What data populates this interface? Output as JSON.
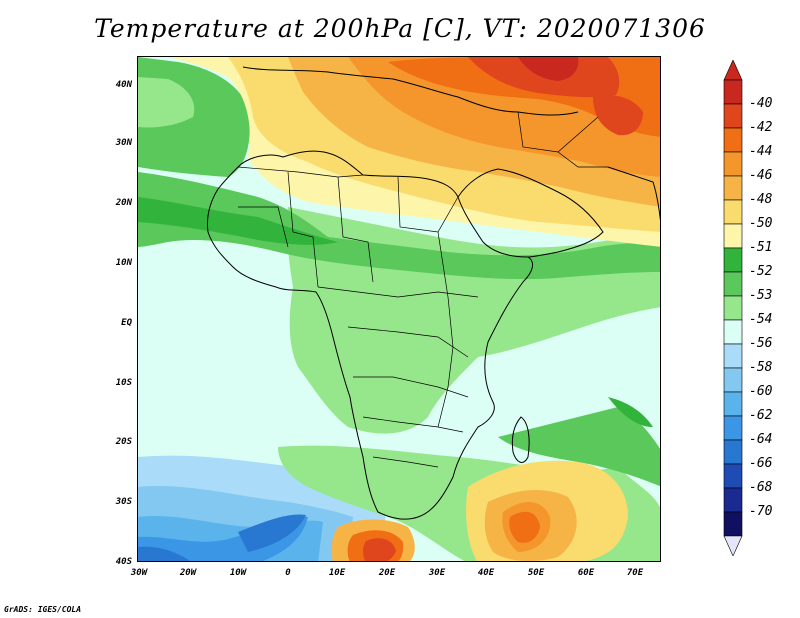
{
  "title": "Temperature at 200hPa [C], VT: 2020071306",
  "footer": "GrADS: IGES/COLA",
  "axes": {
    "lat_labels": [
      "40N",
      "30N",
      "20N",
      "10N",
      "EQ",
      "10S",
      "20S",
      "30S",
      "40S"
    ],
    "lon_labels": [
      "30W",
      "20W",
      "10W",
      "0",
      "10E",
      "20E",
      "30E",
      "40E",
      "50E",
      "60E",
      "70E"
    ]
  },
  "colorbar": {
    "labels": [
      "-40",
      "-42",
      "-44",
      "-46",
      "-48",
      "-50",
      "-51",
      "-52",
      "-53",
      "-54",
      "-56",
      "-58",
      "-60",
      "-62",
      "-64",
      "-66",
      "-68",
      "-70"
    ],
    "colors": [
      "#c8281e",
      "#e0461e",
      "#f06e14",
      "#f5962d",
      "#f7b446",
      "#fadc6e",
      "#fcf5aa",
      "#32b43c",
      "#5ac85a",
      "#96e68c",
      "#dcfff5",
      "#aadcfa",
      "#82c8f0",
      "#5ab4eb",
      "#3c96e6",
      "#2878d2",
      "#1e4cb4",
      "#1a2a90",
      "#101060"
    ],
    "under_color": "#e6e6fa",
    "over_color": "#c8281e"
  },
  "palette": {
    "frame": "#000000",
    "coast": "#000000"
  }
}
